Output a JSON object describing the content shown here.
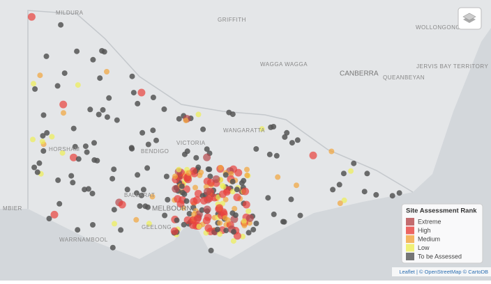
{
  "places": [
    "MILDURA",
    "GRIFFITH",
    "WOLLONGONG",
    "WAGGA WAGGA",
    "CANBERRA",
    "QUEANBEYAN",
    "JERVIS BAY TERRITORY",
    "HORSHAM",
    "BENDIGO",
    "VICTORIA",
    "WANGARATTA",
    "BALLARAT",
    "MELBOURNE",
    "GEELONG",
    "WARRNAMBOOL",
    "MBIER"
  ],
  "legend": {
    "title": "Site Assessment Rank",
    "items": [
      {
        "label": "Extreme",
        "color": "#b5474b"
      },
      {
        "label": "High",
        "color": "#e8403c"
      },
      {
        "label": "Medium",
        "color": "#f2a43b"
      },
      {
        "label": "Low",
        "color": "#eeee55"
      },
      {
        "label": "To be Assessed",
        "color": "#555555"
      }
    ]
  },
  "attribution": "Leaflet | © OpenStreetMap © CartoDB"
}
